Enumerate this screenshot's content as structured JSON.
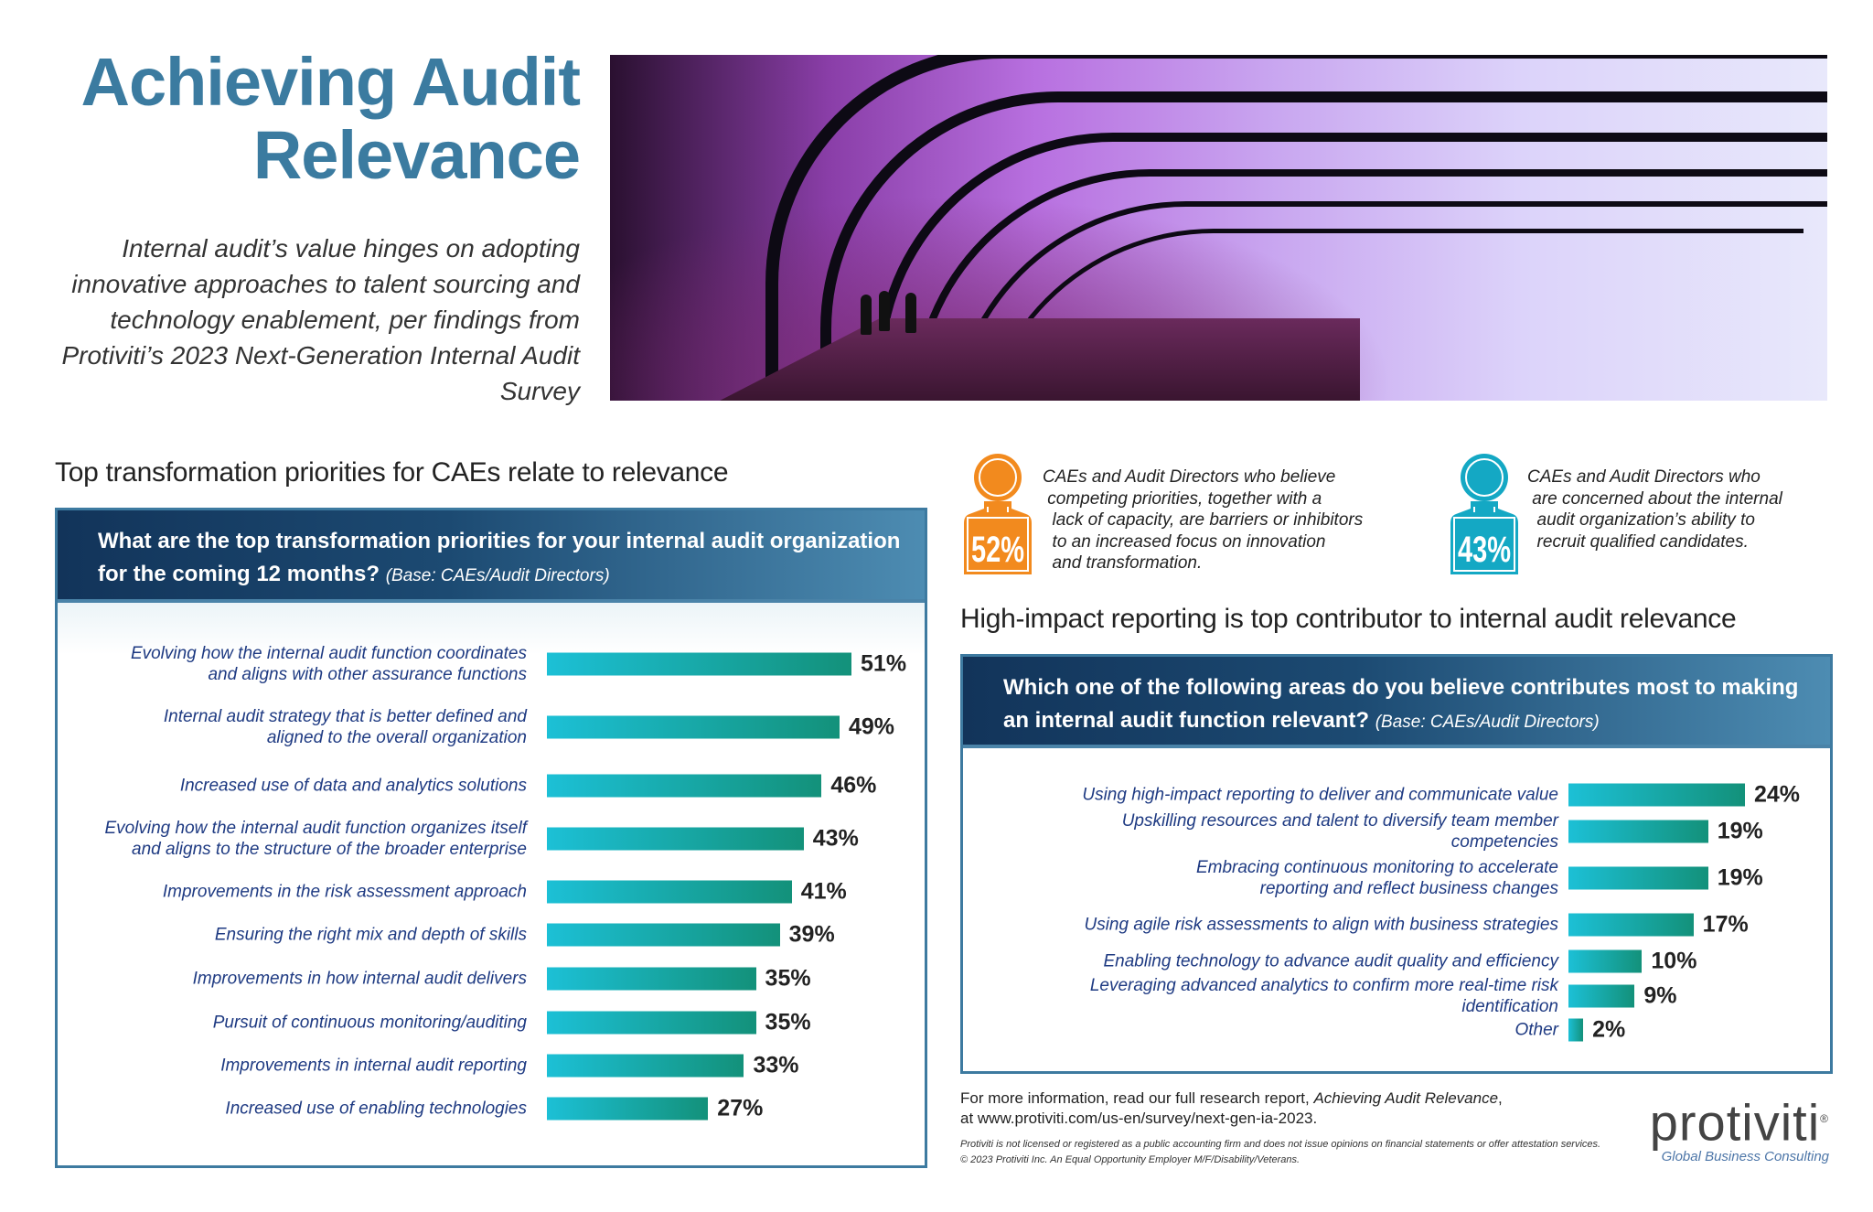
{
  "title": "Achieving Audit Relevance",
  "subtitle": "Internal audit’s value hinges on adopting innovative approaches to talent sourcing and technology enablement, per findings from Protiviti’s 2023 Next-Generation Internal Audit Survey",
  "left_section_heading": "Top transformation priorities for CAEs relate to relevance",
  "right_section_heading": "High-impact reporting is top contributor to internal audit relevance",
  "stats": [
    {
      "value": "52%",
      "color": "#f28a1e",
      "text": "CAEs and Audit Directors who believe\n competing priorities, together with a\n  lack of capacity, are barriers or inhibitors\n  to an increased focus on innovation\n  and transformation."
    },
    {
      "value": "43%",
      "color": "#14a8c4",
      "text": "CAEs and Audit Directors who\n are concerned about the internal\n  audit organization’s ability to\n  recruit qualified candidates."
    }
  ],
  "colors": {
    "title": "#3b7ba0",
    "header_dark": "#12345a",
    "bar_start": "#1cc0d6",
    "bar_end": "#13917a",
    "label": "#1e3a82"
  },
  "chart_data": [
    {
      "type": "bar",
      "orientation": "horizontal",
      "title": "What are the top transformation priorities for your internal audit organization for the coming 12 months?",
      "base_note": "(Base: CAEs/Audit Directors)",
      "categories": [
        "Evolving how the internal audit function coordinates\nand aligns with other assurance functions",
        "Internal audit strategy that is better defined and\naligned to the overall organization",
        "Increased use of data and analytics solutions",
        "Evolving how the internal audit function organizes itself\nand aligns to the structure of the broader enterprise",
        "Improvements in the risk assessment approach",
        "Ensuring the right mix and depth of skills",
        "Improvements in how internal audit delivers",
        "Pursuit of continuous monitoring/auditing",
        "Improvements in internal audit reporting",
        "Increased use of enabling technologies"
      ],
      "values": [
        51,
        49,
        46,
        43,
        41,
        39,
        35,
        35,
        33,
        27
      ],
      "value_labels": [
        "51%",
        "49%",
        "46%",
        "43%",
        "41%",
        "39%",
        "35%",
        "35%",
        "33%",
        "27%"
      ],
      "unit": "%"
    },
    {
      "type": "bar",
      "orientation": "horizontal",
      "title": "Which one of the following areas do you believe contributes most to making an internal audit function relevant?",
      "base_note": "(Base: CAEs/Audit Directors)",
      "categories": [
        "Using high-impact reporting to deliver and communicate value",
        "Upskilling resources and talent to diversify team member competencies",
        "Embracing continuous monitoring to accelerate\nreporting and reflect business changes",
        "Using agile risk assessments to align with business strategies",
        "Enabling technology to advance audit quality and efficiency",
        "Leveraging advanced analytics to confirm more real-time risk identification",
        "Other"
      ],
      "values": [
        24,
        19,
        19,
        17,
        10,
        9,
        2
      ],
      "value_labels": [
        "24%",
        "19%",
        "19%",
        "17%",
        "10%",
        "9%",
        "2%"
      ],
      "unit": "%"
    }
  ],
  "footer": {
    "more_info_prefix": "For more information, read our full research report, ",
    "report_title": "Achieving Audit Relevance",
    "more_info_suffix": ",",
    "url_line": "at www.protiviti.com/us-en/survey/next-gen-ia-2023.",
    "legal_1": "Protiviti is not licensed or registered as a public accounting firm and does not issue opinions on financial statements or offer attestation services.",
    "legal_2": "© 2023 Protiviti Inc. An Equal Opportunity Employer M/F/Disability/Veterans."
  },
  "logo": {
    "wordmark": "protiviti",
    "registered": "®",
    "tagline": "Global Business Consulting"
  }
}
